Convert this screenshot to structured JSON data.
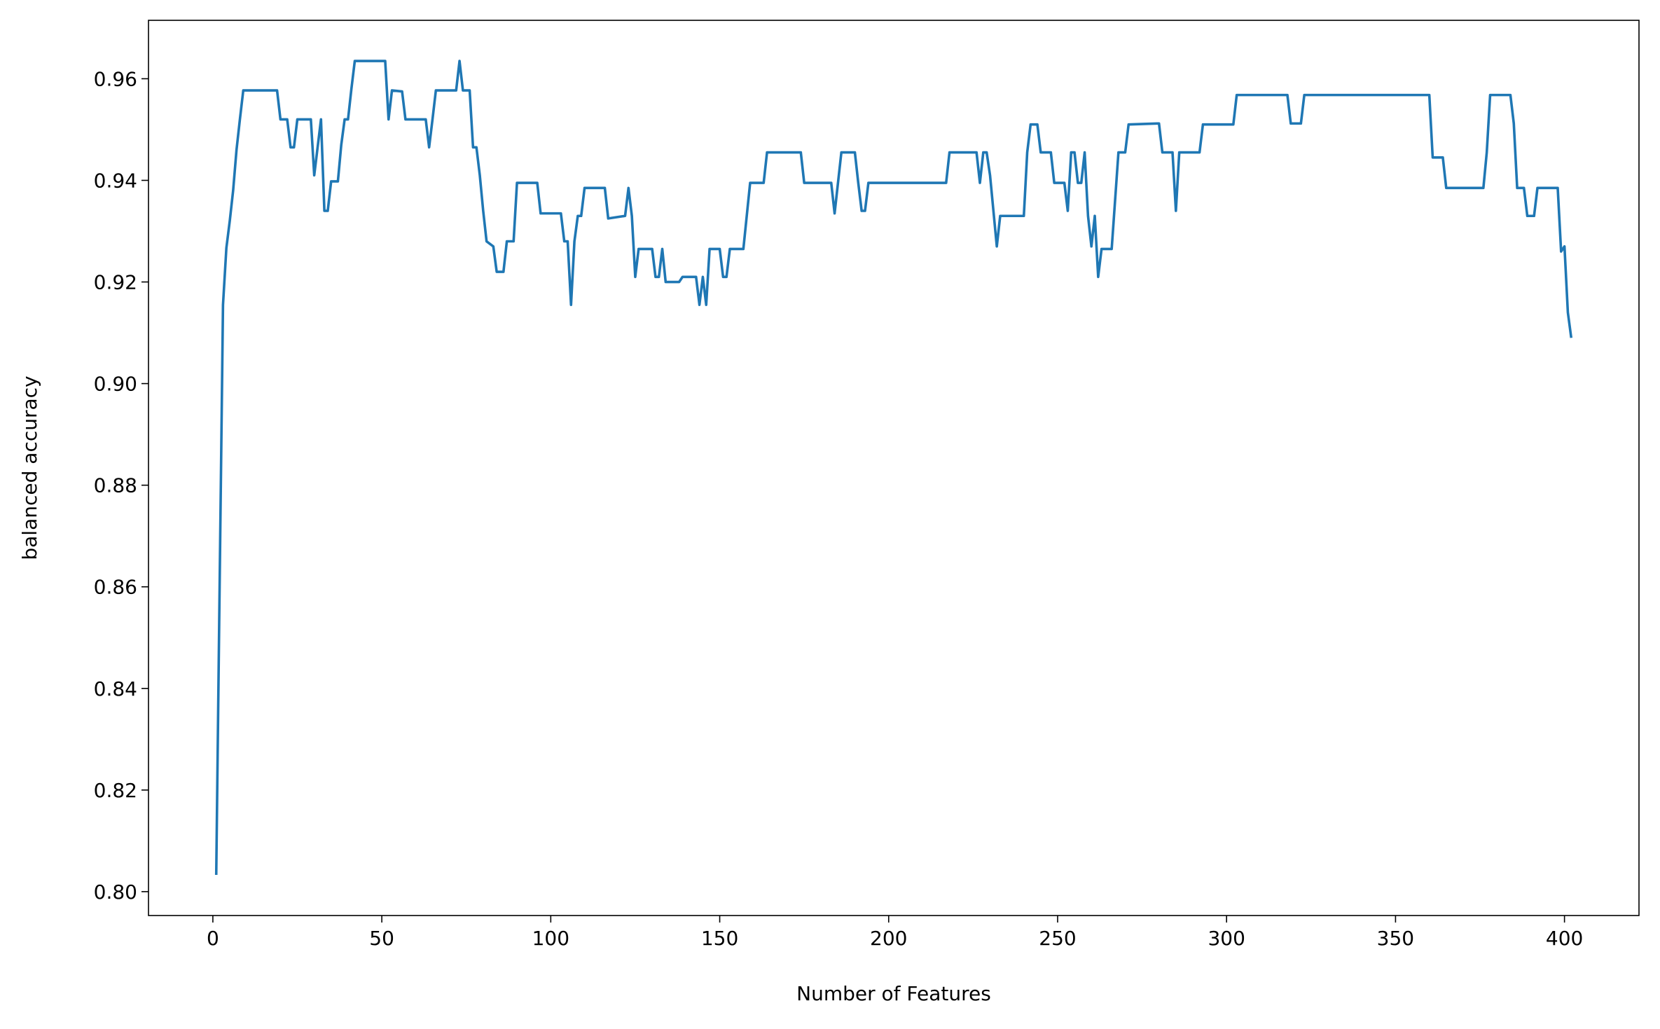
{
  "chart_data": {
    "type": "line",
    "x_label": "Number of Features",
    "y_label": "balanced accuracy",
    "xlim": [
      -19.05,
      422.05
    ],
    "ylim": [
      0.7953,
      0.9715
    ],
    "xticks": [
      0,
      50,
      100,
      150,
      200,
      250,
      300,
      350,
      400
    ],
    "yticks": [
      {
        "value": 0.8,
        "label": "0.80"
      },
      0.82,
      0.84,
      0.86,
      0.88,
      {
        "value": 0.9,
        "label": "0.90"
      },
      0.92,
      0.94,
      0.96
    ],
    "series": [
      {
        "color": "#1f77b4",
        "x": [
          1,
          2,
          3,
          4,
          5,
          6,
          7,
          8,
          9,
          19,
          20,
          22,
          23,
          24,
          25,
          29,
          30,
          32,
          33,
          34,
          35,
          37,
          38,
          39,
          40,
          41,
          42,
          51,
          52,
          53,
          56,
          57,
          63,
          64,
          65,
          66,
          72,
          73,
          74,
          76,
          77,
          78,
          79,
          80,
          81,
          83,
          84,
          86,
          87,
          89,
          90,
          96,
          97,
          103,
          104,
          105,
          106,
          107,
          108,
          109,
          110,
          116,
          117,
          122,
          123,
          124,
          125,
          126,
          130,
          131,
          132,
          133,
          134,
          138,
          139,
          143,
          144,
          145,
          146,
          147,
          150,
          151,
          152,
          153,
          157,
          158,
          159,
          163,
          164,
          174,
          175,
          183,
          184,
          185,
          186,
          190,
          191,
          192,
          193,
          194,
          217,
          218,
          226,
          227,
          228,
          229,
          230,
          232,
          233,
          240,
          241,
          242,
          244,
          245,
          248,
          249,
          252,
          253,
          254,
          255,
          256,
          257,
          258,
          259,
          260,
          261,
          262,
          263,
          266,
          268,
          270,
          271,
          280,
          281,
          284,
          285,
          286,
          292,
          293,
          302,
          303,
          318,
          319,
          322,
          323,
          360,
          361,
          364,
          365,
          376,
          377,
          378,
          384,
          385,
          386,
          388,
          389,
          391,
          392,
          398,
          399,
          400,
          401,
          402
        ],
        "values": [
          0.8033,
          0.86,
          0.9155,
          0.9267,
          0.932,
          0.938,
          0.946,
          0.952,
          0.9577,
          0.9577,
          0.952,
          0.952,
          0.9465,
          0.9465,
          0.952,
          0.952,
          0.941,
          0.952,
          0.934,
          0.934,
          0.9398,
          0.9398,
          0.947,
          0.952,
          0.952,
          0.958,
          0.9635,
          0.9635,
          0.952,
          0.9577,
          0.9575,
          0.952,
          0.952,
          0.9465,
          0.952,
          0.9577,
          0.9577,
          0.9635,
          0.9577,
          0.9577,
          0.9465,
          0.9465,
          0.941,
          0.934,
          0.928,
          0.927,
          0.922,
          0.922,
          0.928,
          0.928,
          0.9395,
          0.9395,
          0.9335,
          0.9335,
          0.928,
          0.928,
          0.9155,
          0.928,
          0.933,
          0.933,
          0.9385,
          0.9385,
          0.9325,
          0.933,
          0.9385,
          0.933,
          0.921,
          0.9265,
          0.9265,
          0.921,
          0.921,
          0.9265,
          0.92,
          0.92,
          0.921,
          0.921,
          0.9155,
          0.921,
          0.9155,
          0.9265,
          0.9265,
          0.921,
          0.921,
          0.9265,
          0.9265,
          0.933,
          0.9395,
          0.9395,
          0.9455,
          0.9455,
          0.9395,
          0.9395,
          0.9335,
          0.9395,
          0.9455,
          0.9455,
          0.9395,
          0.934,
          0.934,
          0.9395,
          0.9395,
          0.9455,
          0.9455,
          0.9395,
          0.9455,
          0.9455,
          0.941,
          0.927,
          0.933,
          0.933,
          0.9455,
          0.951,
          0.951,
          0.9455,
          0.9455,
          0.9395,
          0.9395,
          0.934,
          0.9455,
          0.9455,
          0.9395,
          0.9395,
          0.9455,
          0.933,
          0.927,
          0.933,
          0.921,
          0.9265,
          0.9265,
          0.9455,
          0.9455,
          0.951,
          0.9512,
          0.9455,
          0.9455,
          0.934,
          0.9455,
          0.9455,
          0.951,
          0.951,
          0.9568,
          0.9568,
          0.9512,
          0.9512,
          0.9568,
          0.9568,
          0.9445,
          0.9445,
          0.9385,
          0.9385,
          0.9455,
          0.9568,
          0.9568,
          0.9512,
          0.9385,
          0.9385,
          0.933,
          0.933,
          0.9385,
          0.9385,
          0.926,
          0.927,
          0.914,
          0.909
        ]
      }
    ]
  }
}
